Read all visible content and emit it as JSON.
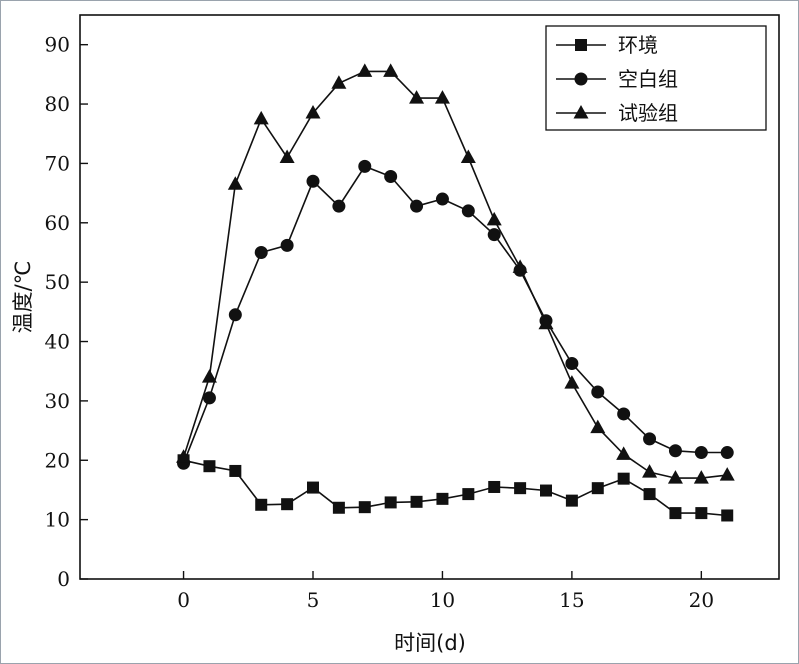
{
  "chart_data": {
    "type": "line",
    "xlabel": "时间(d)",
    "ylabel": "温度/℃",
    "xlim": [
      -4,
      23
    ],
    "ylim": [
      0,
      95
    ],
    "xticks": [
      0,
      5,
      10,
      15,
      20
    ],
    "yticks": [
      0,
      10,
      20,
      30,
      40,
      50,
      60,
      70,
      80,
      90
    ],
    "grid": false,
    "legend_position": "top-right",
    "x": [
      0,
      1,
      2,
      3,
      4,
      5,
      6,
      7,
      8,
      9,
      10,
      11,
      12,
      13,
      14,
      15,
      16,
      17,
      18,
      19,
      20,
      21
    ],
    "series": [
      {
        "name": "环境",
        "marker": "square",
        "values": [
          20.0,
          19.0,
          18.2,
          12.5,
          12.6,
          15.4,
          12.0,
          12.1,
          12.9,
          13.0,
          13.5,
          14.3,
          15.5,
          15.3,
          14.9,
          13.2,
          15.3,
          16.9,
          14.3,
          11.1,
          11.1,
          10.7
        ]
      },
      {
        "name": "空白组",
        "marker": "circle",
        "values": [
          19.5,
          30.5,
          44.5,
          55.0,
          56.2,
          67.0,
          62.8,
          69.5,
          67.8,
          62.8,
          64.0,
          62.0,
          58.0,
          52.0,
          43.5,
          36.3,
          31.5,
          27.8,
          23.6,
          21.6,
          21.3,
          21.3
        ]
      },
      {
        "name": "试验组",
        "marker": "triangle",
        "values": [
          20.5,
          34.0,
          66.5,
          77.5,
          71.0,
          78.5,
          83.5,
          85.5,
          85.5,
          81.0,
          81.0,
          71.0,
          60.5,
          52.5,
          43.0,
          33.0,
          25.5,
          21.0,
          18.0,
          17.0,
          17.0,
          17.5
        ]
      }
    ]
  }
}
